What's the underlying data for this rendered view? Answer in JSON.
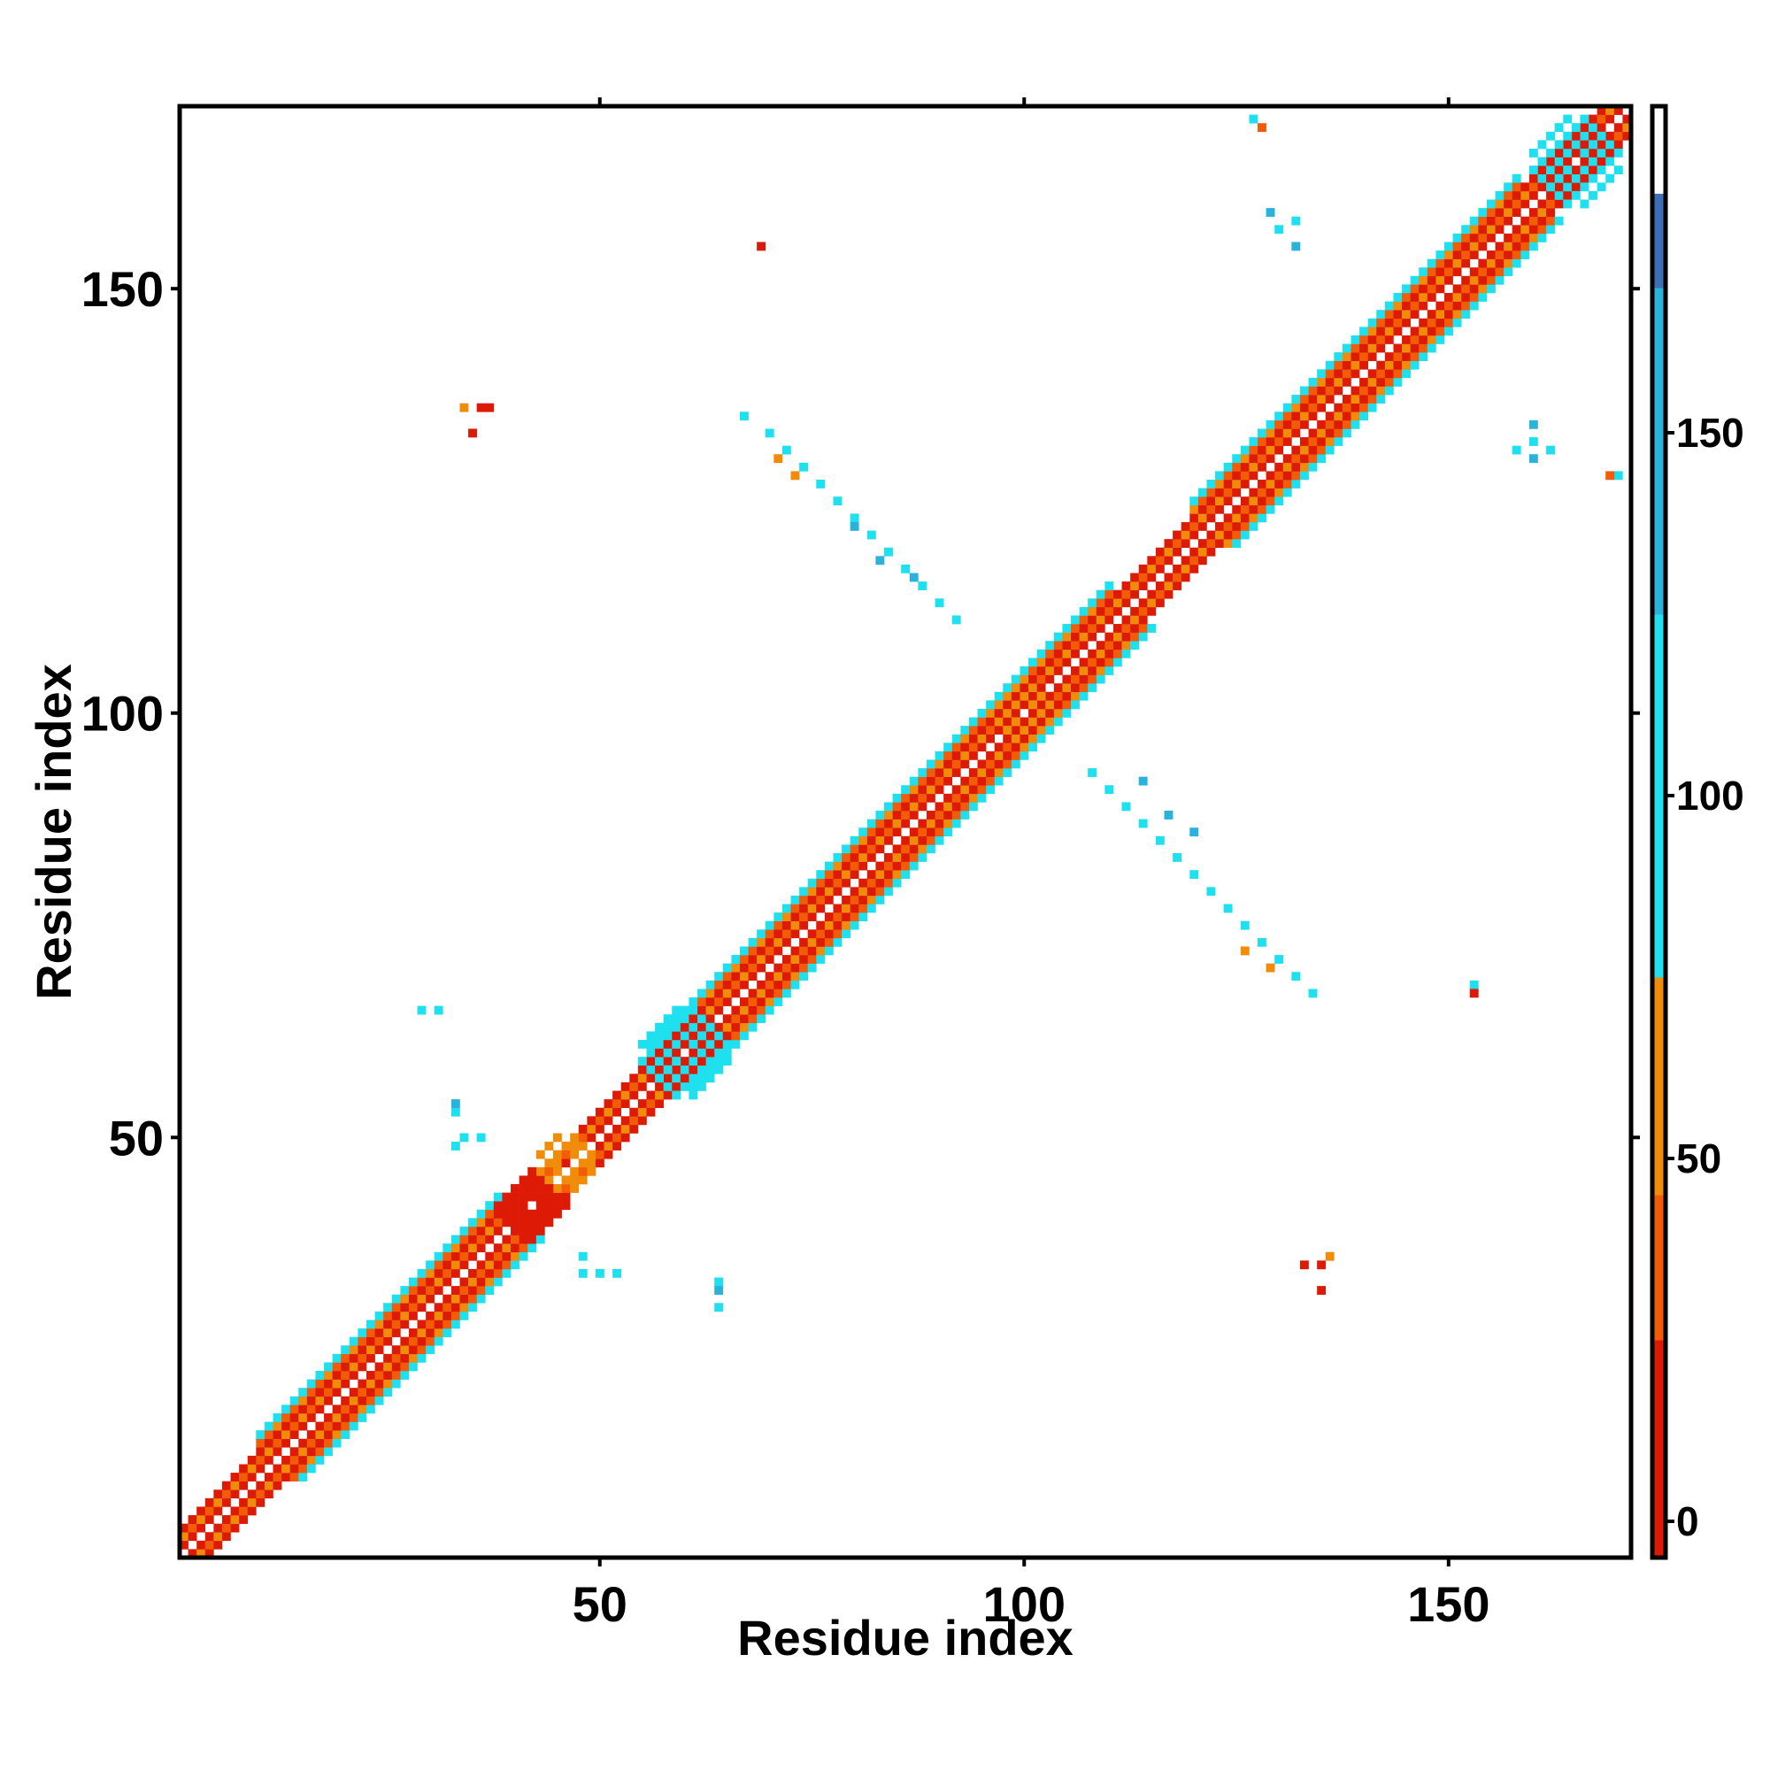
{
  "chart_data": {
    "type": "heatmap",
    "title": "",
    "xlabel": "Residue index",
    "ylabel": "Residue index",
    "xlim": [
      1,
      171
    ],
    "ylim": [
      1,
      171
    ],
    "x_ticks": [
      "50",
      "100",
      "150"
    ],
    "y_ticks": [
      "50",
      "100",
      "150"
    ],
    "colorbar": {
      "range": [
        -5,
        195
      ],
      "ticks": [
        "0",
        "50",
        "100",
        "150"
      ],
      "bands": [
        {
          "from": -5,
          "to": 25,
          "color": "#dd1a05"
        },
        {
          "from": 25,
          "to": 45,
          "color": "#f25c06"
        },
        {
          "from": 45,
          "to": 75,
          "color": "#f08c0a"
        },
        {
          "from": 75,
          "to": 125,
          "color": "#1fe0ee"
        },
        {
          "from": 125,
          "to": 170,
          "color": "#2ab2db"
        },
        {
          "from": 170,
          "to": 183,
          "color": "#3d6fb7"
        },
        {
          "from": 183,
          "to": 195,
          "color": "#ffffff"
        }
      ]
    },
    "diagonal_band": {
      "description": "contacts along the diagonal |i-j|<=5 over residues 1-171",
      "ring_values": [
        null,
        10,
        55,
        0,
        40,
        100
      ],
      "wide_segments": [
        [
          10,
          38
        ],
        [
          56,
          110
        ],
        [
          120,
          158
        ]
      ]
    },
    "clusters": [
      {
        "center": [
          42,
          42
        ],
        "radius": 4,
        "value": 20
      },
      {
        "center": [
          60,
          60
        ],
        "radius": 5,
        "value": 100
      },
      {
        "center": [
          165,
          165
        ],
        "radius": 5,
        "value": 100
      },
      {
        "center": [
          100,
          100
        ],
        "radius": 4,
        "value": 50
      },
      {
        "center": [
          46,
          47
        ],
        "radius": 3,
        "value": 60
      }
    ],
    "off_diagonal_contacts": [
      {
        "points": [
          [
            67,
            135
          ],
          [
            70,
            133
          ],
          [
            72,
            131
          ],
          [
            74,
            129
          ],
          [
            76,
            127
          ],
          [
            78,
            125
          ],
          [
            80,
            123
          ],
          [
            82,
            121
          ],
          [
            84,
            119
          ],
          [
            86,
            117
          ],
          [
            88,
            115
          ],
          [
            90,
            113
          ],
          [
            92,
            111
          ]
        ],
        "value": 100
      },
      {
        "points": [
          [
            71,
            130
          ],
          [
            73,
            128
          ]
        ],
        "value": 55
      },
      {
        "points": [
          [
            80,
            122
          ],
          [
            83,
            118
          ],
          [
            87,
            116
          ]
        ],
        "value": 150
      },
      {
        "points": [
          [
            36,
            136
          ],
          [
            37,
            136
          ],
          [
            35,
            133
          ]
        ],
        "value": 10
      },
      {
        "points": [
          [
            34,
            136
          ]
        ],
        "value": 55
      },
      {
        "points": [
          [
            69,
            155
          ]
        ],
        "value": 10
      },
      {
        "points": [
          [
            127,
            170
          ],
          [
            130,
            157
          ],
          [
            132,
            158
          ]
        ],
        "value": 100
      },
      {
        "points": [
          [
            129,
            159
          ],
          [
            132,
            155
          ]
        ],
        "value": 150
      },
      {
        "points": [
          [
            128,
            169
          ]
        ],
        "value": 40
      },
      {
        "points": [
          [
            160,
            132
          ],
          [
            162,
            131
          ],
          [
            158,
            131
          ]
        ],
        "value": 100
      },
      {
        "points": [
          [
            160,
            134
          ],
          [
            160,
            130
          ]
        ],
        "value": 150
      },
      {
        "points": [
          [
            170,
            128
          ]
        ],
        "value": 100
      },
      {
        "points": [
          [
            169,
            128
          ]
        ],
        "value": 40
      },
      {
        "points": [
          [
            29,
            65
          ],
          [
            31,
            65
          ],
          [
            33,
            53
          ],
          [
            33,
            49
          ],
          [
            36,
            50
          ],
          [
            34,
            50
          ]
        ],
        "value": 100
      },
      {
        "points": [
          [
            33,
            54
          ]
        ],
        "value": 150
      },
      {
        "points": [
          [
            48,
            36
          ],
          [
            48,
            34
          ],
          [
            50,
            34
          ],
          [
            52,
            34
          ],
          [
            64,
            33
          ],
          [
            64,
            30
          ]
        ],
        "value": 100
      },
      {
        "points": [
          [
            64,
            32
          ]
        ],
        "value": 150
      },
      {
        "points": [
          [
            108,
            93
          ],
          [
            110,
            91
          ],
          [
            112,
            89
          ],
          [
            114,
            87
          ],
          [
            116,
            85
          ],
          [
            118,
            83
          ],
          [
            120,
            81
          ],
          [
            122,
            79
          ],
          [
            124,
            77
          ],
          [
            126,
            75
          ],
          [
            128,
            73
          ],
          [
            130,
            71
          ],
          [
            132,
            69
          ],
          [
            134,
            67
          ]
        ],
        "value": 100
      },
      {
        "points": [
          [
            114,
            92
          ],
          [
            117,
            88
          ],
          [
            120,
            86
          ]
        ],
        "value": 150
      },
      {
        "points": [
          [
            126,
            72
          ],
          [
            129,
            70
          ]
        ],
        "value": 55
      },
      {
        "points": [
          [
            133,
            35
          ],
          [
            135,
            35
          ],
          [
            135,
            32
          ]
        ],
        "value": 10
      },
      {
        "points": [
          [
            136,
            36
          ]
        ],
        "value": 55
      },
      {
        "points": [
          [
            153,
            68
          ]
        ],
        "value": 100
      },
      {
        "points": [
          [
            153,
            67
          ]
        ],
        "value": 10
      }
    ]
  }
}
